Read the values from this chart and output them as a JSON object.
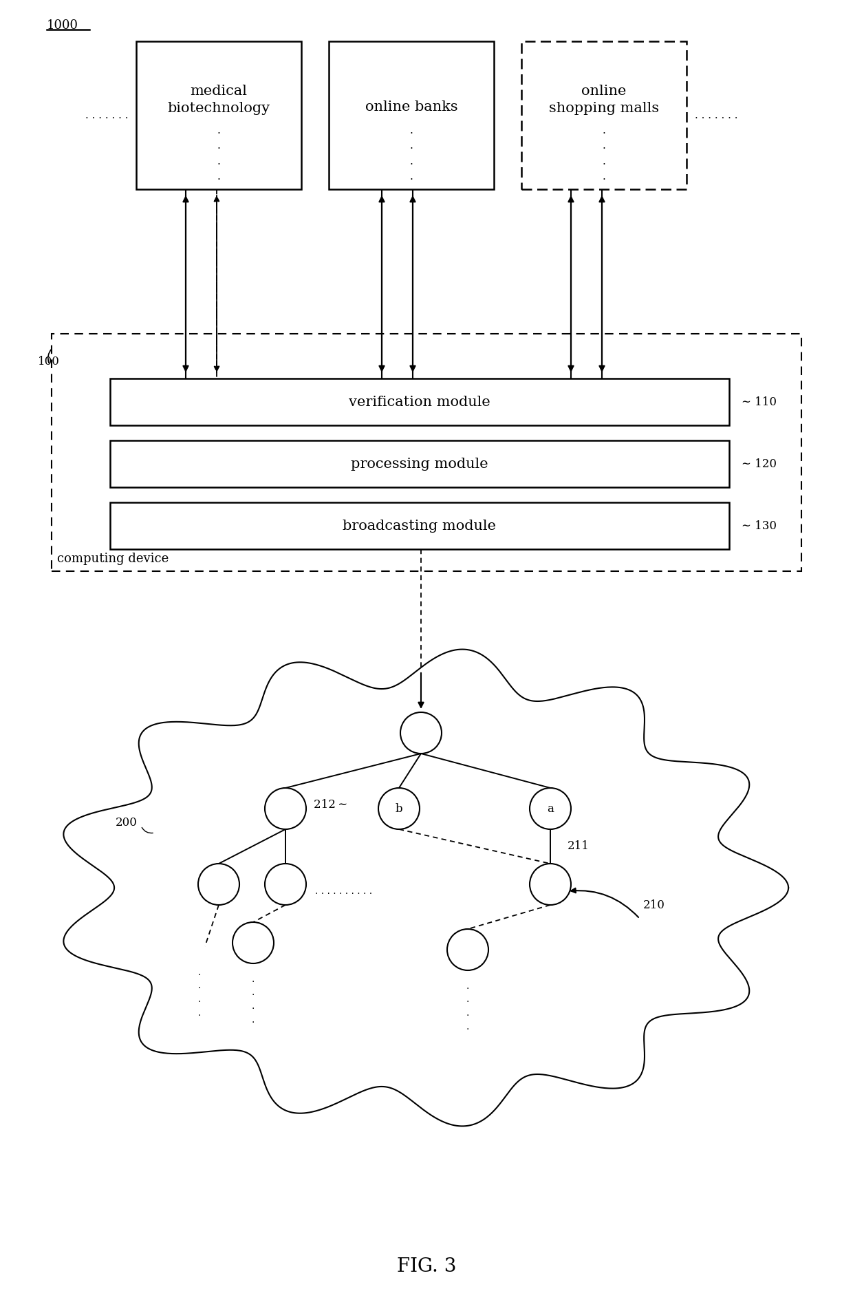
{
  "title": "FIG. 3",
  "bg_color": "#ffffff",
  "label_1000": "1000",
  "label_100": "100",
  "label_110": "110",
  "label_120": "120",
  "label_130": "130",
  "label_200": "200",
  "label_210": "210",
  "label_211": "211",
  "label_212": "212",
  "box_medical": "medical\nbiotechnology",
  "box_banks": "online banks",
  "box_shopping": "online\nshopping malls",
  "mod_verification": "verification module",
  "mod_processing": "processing module",
  "mod_broadcasting": "broadcasting module",
  "label_computing": "computing device",
  "node_a": "a",
  "node_b": "b",
  "line_color": "#000000",
  "fig_width": 12.4,
  "fig_height": 18.76,
  "fig_dpi": 100
}
